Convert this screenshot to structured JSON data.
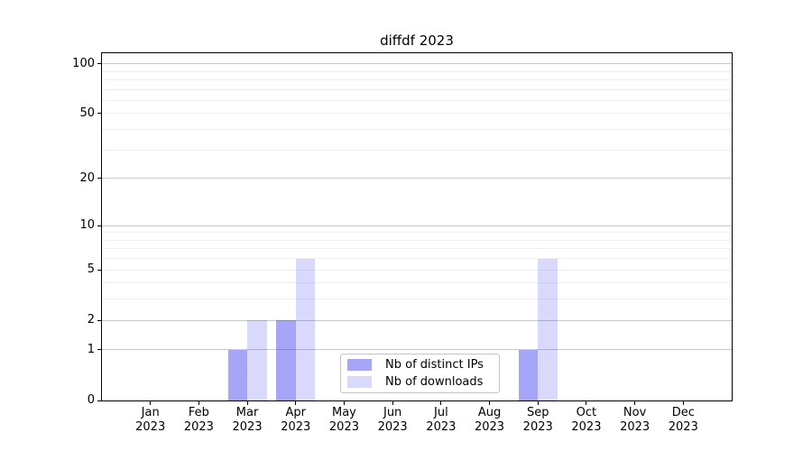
{
  "title": "diffdf 2023",
  "chart_data": {
    "type": "bar",
    "title": "diffdf 2023",
    "categories": [
      "Jan",
      "Feb",
      "Mar",
      "Apr",
      "May",
      "Jun",
      "Jul",
      "Aug",
      "Sep",
      "Oct",
      "Nov",
      "Dec"
    ],
    "category_year": "2023",
    "series": [
      {
        "name": "Nb of distinct IPs",
        "color": "rgba(0,0,238,0.35)",
        "values": [
          0,
          0,
          1,
          2,
          0,
          0,
          0,
          0,
          1,
          0,
          0,
          0
        ]
      },
      {
        "name": "Nb of downloads",
        "color": "rgba(0,0,238,0.15)",
        "values": [
          0,
          0,
          2,
          6,
          0,
          0,
          0,
          0,
          6,
          0,
          0,
          0
        ]
      }
    ],
    "xlabel": "",
    "ylabel": "",
    "yscale": "log1p",
    "ylim": [
      0,
      115
    ],
    "y_tick_values": [
      0,
      1,
      2,
      5,
      10,
      20,
      50,
      100
    ],
    "grid": true,
    "grid_major_values": [
      1,
      2,
      10,
      20,
      100
    ],
    "grid_minor_values": [
      3,
      4,
      5,
      6,
      7,
      8,
      9,
      30,
      40,
      50,
      60,
      70,
      80,
      90
    ],
    "legend_position": "lower center",
    "colors": {
      "grid_major": "#c9c9c9",
      "grid_minor": "#efefef",
      "axis_frame": "#000000",
      "text": "#000000",
      "legend_border": "#c4c4c4"
    }
  }
}
